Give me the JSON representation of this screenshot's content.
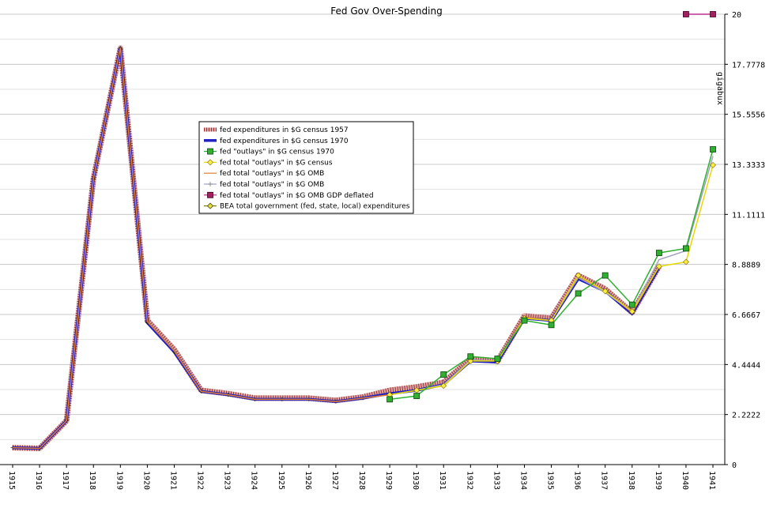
{
  "chart_data": {
    "type": "line",
    "title": "Fed Gov Over-Spending",
    "xlabel": "",
    "ylabel": "gigabux",
    "ylim": [
      0,
      20
    ],
    "grid": true,
    "legend_position": "center-left",
    "x_categories": [
      "1915",
      "1916",
      "1917",
      "1918",
      "1919",
      "1920",
      "1921",
      "1922",
      "1923",
      "1924",
      "1925",
      "1926",
      "1927",
      "1928",
      "1929",
      "1930",
      "1931",
      "1932",
      "1933",
      "1934",
      "1935",
      "1936",
      "1937",
      "1938",
      "1939",
      "1940",
      "1941"
    ],
    "y_ticks": [
      "0",
      "2.2222",
      "4.4444",
      "6.6667",
      "8.8889",
      "11.1111",
      "13.3333",
      "15.5556",
      "17.7778",
      "20"
    ],
    "series": [
      {
        "name": "fed expenditures in $G census 1957",
        "color": "#c08080",
        "values": [
          0.75,
          0.72,
          1.95,
          12.7,
          18.5,
          6.4,
          5.1,
          3.3,
          3.15,
          2.95,
          2.95,
          2.95,
          2.85,
          3.0,
          3.3,
          3.45,
          3.65,
          4.7,
          4.6,
          6.6,
          6.5,
          8.4,
          7.8,
          6.75,
          8.8,
          null,
          null
        ]
      },
      {
        "name": "fed expenditures in $G census 1970",
        "color": "#2020c8",
        "values": [
          0.75,
          0.72,
          1.95,
          12.7,
          18.5,
          6.3,
          5.0,
          3.25,
          3.1,
          2.9,
          2.9,
          2.9,
          2.8,
          2.95,
          3.15,
          3.3,
          3.55,
          4.6,
          4.55,
          6.5,
          6.4,
          8.25,
          7.7,
          6.7,
          8.75,
          null,
          null
        ]
      },
      {
        "name": "fed \"outlays\" in $G census 1970",
        "color": "#30b030",
        "values": [
          null,
          null,
          null,
          null,
          null,
          null,
          null,
          null,
          null,
          null,
          null,
          null,
          null,
          null,
          2.9,
          3.05,
          4.0,
          4.8,
          4.7,
          6.4,
          6.2,
          7.6,
          8.4,
          7.1,
          9.4,
          9.6,
          14.0
        ]
      },
      {
        "name": "fed total \"outlays\" in $G census",
        "color": "#e8d800",
        "values": [
          null,
          null,
          null,
          null,
          null,
          null,
          null,
          null,
          null,
          null,
          null,
          null,
          null,
          null,
          3.1,
          3.3,
          3.5,
          4.6,
          4.6,
          6.5,
          6.4,
          8.4,
          7.7,
          6.8,
          8.8,
          9.0,
          13.3
        ]
      },
      {
        "name": "fed total \"outlays\" in $G OMB",
        "color": "#e08030",
        "values": [
          0.75,
          0.72,
          1.95,
          12.7,
          18.5,
          6.35,
          5.05,
          3.25,
          3.1,
          2.9,
          2.9,
          2.9,
          2.8,
          2.95,
          3.1,
          3.3,
          3.55,
          4.65,
          4.6,
          6.55,
          6.4,
          8.3,
          7.7,
          6.75,
          8.8,
          null,
          null
        ]
      },
      {
        "name": "fed total \"outlays\" in $G OMB",
        "color": "#a0a0c0",
        "values": [
          null,
          null,
          null,
          null,
          null,
          null,
          null,
          null,
          null,
          null,
          null,
          null,
          null,
          null,
          3.1,
          3.3,
          3.55,
          4.65,
          4.6,
          6.5,
          6.4,
          8.3,
          7.65,
          6.8,
          9.1,
          9.5,
          13.7
        ]
      },
      {
        "name": "fed total \"outlays\" in $G OMB GDP deflated",
        "color": "#c03090",
        "values": [
          null,
          null,
          null,
          null,
          null,
          null,
          null,
          null,
          null,
          null,
          null,
          null,
          null,
          null,
          null,
          null,
          null,
          null,
          null,
          null,
          null,
          null,
          null,
          null,
          null,
          20,
          20
        ]
      },
      {
        "name": "BEA total government (fed, state, local) expenditures",
        "color": "#808000",
        "values": []
      }
    ]
  }
}
